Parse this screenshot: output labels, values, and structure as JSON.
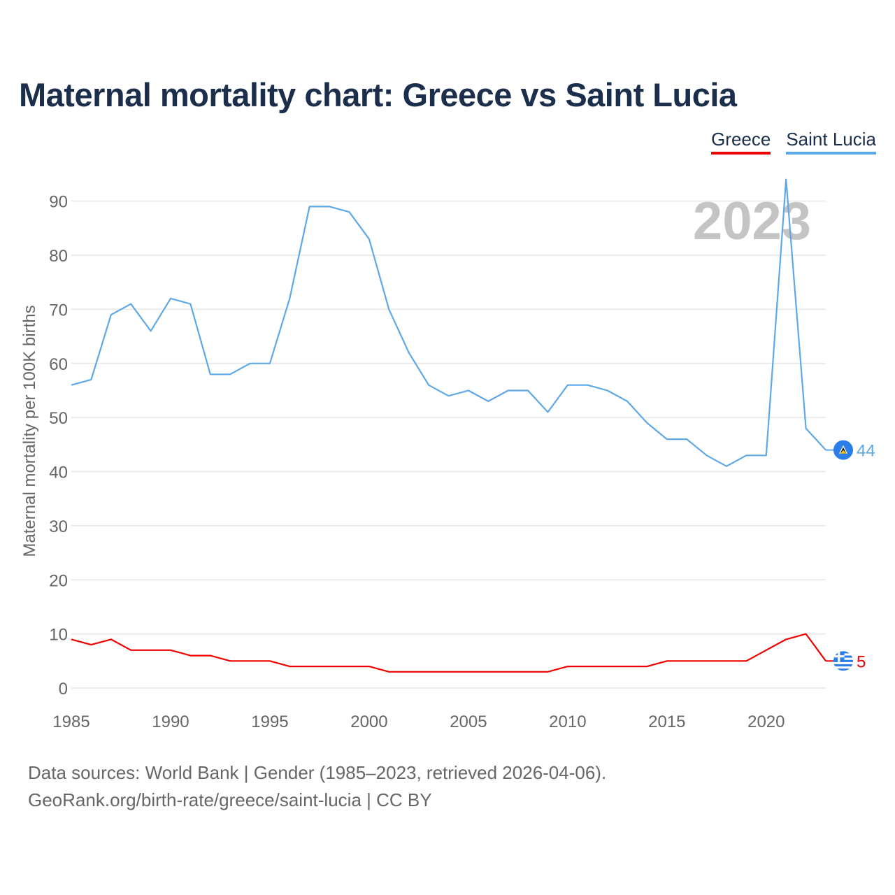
{
  "title": "Maternal mortality chart: Greece vs Saint Lucia",
  "legend": [
    {
      "label": "Greece",
      "color": "#f00000"
    },
    {
      "label": "Saint Lucia",
      "color": "#5fa8e8"
    }
  ],
  "footer": {
    "line1": "Data sources: World Bank | Gender (1985–2023, retrieved 2026-04-06).",
    "line2": "GeoRank.org/birth-rate/greece/saint-lucia | CC BY"
  },
  "chart_data": {
    "type": "line",
    "title": "Maternal mortality chart: Greece vs Saint Lucia",
    "xlabel": "",
    "ylabel": "Maternal mortality per 100K births",
    "year_label": "2023",
    "xlim": [
      1985,
      2023
    ],
    "ylim": [
      0,
      95
    ],
    "yticks": [
      0,
      10,
      20,
      30,
      40,
      50,
      60,
      70,
      80,
      90
    ],
    "xticks": [
      1985,
      1990,
      1995,
      2000,
      2005,
      2010,
      2015,
      2020
    ],
    "x": [
      1985,
      1986,
      1987,
      1988,
      1989,
      1990,
      1991,
      1992,
      1993,
      1994,
      1995,
      1996,
      1997,
      1998,
      1999,
      2000,
      2001,
      2002,
      2003,
      2004,
      2005,
      2006,
      2007,
      2008,
      2009,
      2010,
      2011,
      2012,
      2013,
      2014,
      2015,
      2016,
      2017,
      2018,
      2019,
      2020,
      2021,
      2022,
      2023
    ],
    "series": [
      {
        "name": "Greece",
        "color": "#f00000",
        "end_label": "5",
        "flag_icon": "greece-flag-icon",
        "values": [
          9,
          8,
          9,
          7,
          7,
          7,
          6,
          6,
          5,
          5,
          5,
          4,
          4,
          4,
          4,
          4,
          3,
          3,
          3,
          3,
          3,
          3,
          3,
          3,
          3,
          4,
          4,
          4,
          4,
          4,
          5,
          5,
          5,
          5,
          5,
          7,
          9,
          10,
          5
        ]
      },
      {
        "name": "Saint Lucia",
        "color": "#5fa8e8",
        "end_label": "44",
        "flag_icon": "saint-lucia-flag-icon",
        "values": [
          56,
          57,
          69,
          71,
          66,
          72,
          71,
          58,
          58,
          60,
          60,
          72,
          89,
          89,
          88,
          83,
          70,
          62,
          56,
          54,
          55,
          53,
          55,
          55,
          51,
          56,
          56,
          55,
          53,
          49,
          46,
          46,
          43,
          41,
          43,
          43,
          94,
          48,
          44
        ]
      }
    ]
  }
}
